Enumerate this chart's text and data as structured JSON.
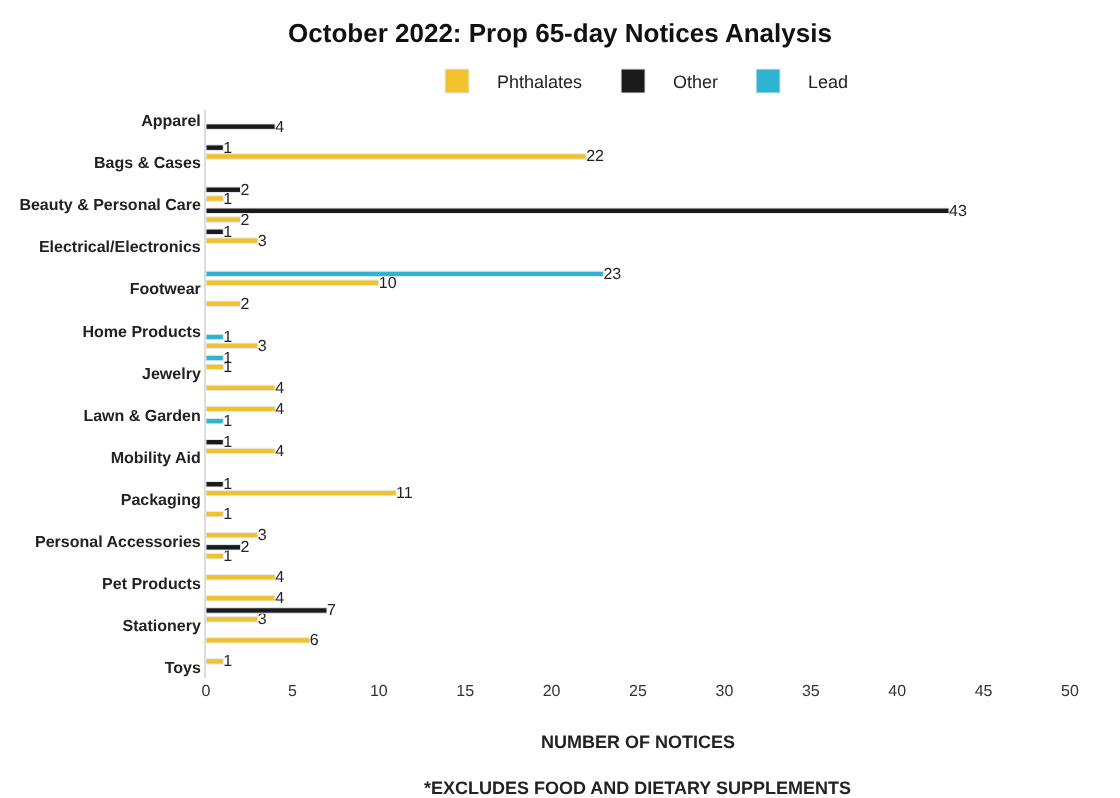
{
  "chart_data": {
    "type": "bar",
    "orientation": "horizontal",
    "title": "October 2022: Prop 65-day Notices Analysis",
    "categories": [
      "Apparel",
      null,
      "Bags & Cases",
      null,
      "Beauty & Personal Care",
      null,
      "Electrical/Electronics",
      null,
      "Footwear",
      null,
      "Home Products",
      null,
      "Jewelry",
      null,
      "Lawn & Garden",
      null,
      "Mobility Aid",
      null,
      "Packaging",
      null,
      "Personal Accessories",
      null,
      "Pet Products",
      null,
      "Stationery",
      null,
      "Toys"
    ],
    "series": [
      {
        "name": "Phthalates",
        "color": "#f2c12e",
        "values": [
          null,
          null,
          22,
          null,
          1,
          2,
          3,
          null,
          10,
          2,
          null,
          3,
          1,
          4,
          4,
          null,
          4,
          null,
          11,
          1,
          3,
          1,
          4,
          4,
          3,
          6,
          1
        ]
      },
      {
        "name": "Other",
        "color": "#1a1a1a",
        "values": [
          4,
          1,
          null,
          2,
          43,
          1,
          null,
          null,
          null,
          null,
          null,
          null,
          null,
          null,
          null,
          1,
          null,
          1,
          null,
          null,
          2,
          null,
          null,
          7,
          null,
          null,
          null
        ]
      },
      {
        "name": "Lead",
        "color": "#2fb3d1",
        "values": [
          null,
          null,
          null,
          null,
          null,
          null,
          null,
          23,
          null,
          null,
          1,
          1,
          null,
          null,
          1,
          null,
          null,
          null,
          null,
          null,
          null,
          null,
          null,
          null,
          null,
          null,
          null
        ]
      }
    ],
    "xlim": [
      0,
      50
    ],
    "xticks": [
      0,
      5,
      10,
      15,
      20,
      25,
      30,
      35,
      40,
      45,
      50
    ],
    "xlabel": "NUMBER OF NOTICES",
    "annotations": [
      "*EXCLUDES FOOD AND DIETARY SUPPLEMENTS"
    ],
    "data_labels": true,
    "legend": "top"
  }
}
